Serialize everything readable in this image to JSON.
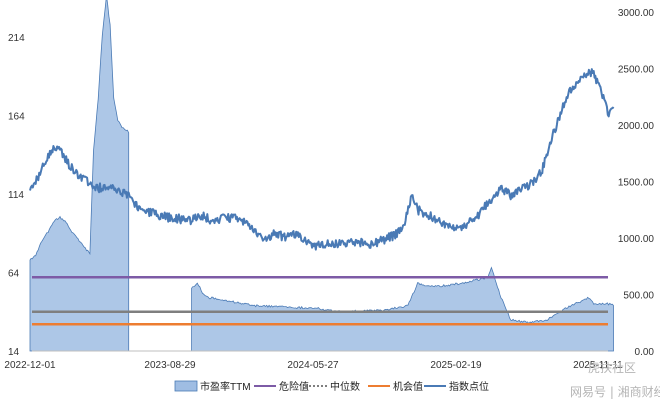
{
  "chart_data": {
    "type": "line",
    "title": "",
    "x_ticks": [
      "2022-12-01",
      "2023-08-29",
      "2024-05-27",
      "2025-02-19",
      "2025-11-11"
    ],
    "y_left": {
      "ticks": [
        "214",
        "164",
        "114",
        "64",
        "14"
      ],
      "range": [
        14,
        230
      ]
    },
    "y_right": {
      "ticks": [
        "3000.00",
        "2500.00",
        "2000.00",
        "1500.00",
        "1000.00",
        "500.00",
        "0.00"
      ],
      "range": [
        0,
        3000
      ]
    },
    "grid": false,
    "legend_position": "bottom",
    "series": [
      {
        "name": "市盈率TTM",
        "axis": "left",
        "style": "area",
        "color": "#9fbde3",
        "points": [
          [
            "2022-12-01",
            72
          ],
          [
            "2022-12-12",
            75
          ],
          [
            "2022-12-24",
            84
          ],
          [
            "2023-01-05",
            90
          ],
          [
            "2023-01-17",
            97
          ],
          [
            "2023-01-28",
            99
          ],
          [
            "2023-02-09",
            96
          ],
          [
            "2023-02-20",
            90
          ],
          [
            "2023-03-04",
            85
          ],
          [
            "2023-03-16",
            80
          ],
          [
            "2023-03-27",
            76
          ],
          [
            "2023-04-03",
            142
          ],
          [
            "2023-04-12",
            175
          ],
          [
            "2023-04-20",
            215
          ],
          [
            "2023-04-28",
            240
          ],
          [
            "2023-05-05",
            222
          ],
          [
            "2023-05-12",
            175
          ],
          [
            "2023-05-20",
            161
          ],
          [
            "2023-05-28",
            157
          ],
          [
            "2023-06-05",
            155
          ],
          [
            "2023-06-10",
            153
          ],
          [
            "2023-06-11",
            null
          ],
          [
            "2023-10-08",
            null
          ],
          [
            "2023-10-09",
            54
          ],
          [
            "2023-10-20",
            57
          ],
          [
            "2023-11-01",
            50
          ],
          [
            "2023-11-12",
            48
          ],
          [
            "2023-12-16",
            46
          ],
          [
            "2024-02-01",
            43
          ],
          [
            "2024-04-06",
            42
          ],
          [
            "2024-06-06",
            41
          ],
          [
            "2024-07-09",
            39
          ],
          [
            "2024-10-07",
            40
          ],
          [
            "2024-11-21",
            43
          ],
          [
            "2024-12-09",
            57
          ],
          [
            "2025-01-07",
            55
          ],
          [
            "2025-02-05",
            56
          ],
          [
            "2025-03-15",
            58
          ],
          [
            "2025-04-19",
            61
          ],
          [
            "2025-04-26",
            67
          ],
          [
            "2025-05-12",
            50
          ],
          [
            "2025-06-01",
            34
          ],
          [
            "2025-07-05",
            32
          ],
          [
            "2025-08-08",
            34
          ],
          [
            "2025-09-11",
            41
          ],
          [
            "2025-10-06",
            45
          ],
          [
            "2025-10-25",
            48
          ],
          [
            "2025-11-03",
            44
          ],
          [
            "2025-12-03",
            44
          ],
          [
            "2025-12-10",
            43
          ]
        ]
      },
      {
        "name": "危险值",
        "axis": "left",
        "style": "hline",
        "color": "#7d5ba6",
        "value": 61
      },
      {
        "name": "中位数",
        "axis": "left",
        "style": "hline",
        "color": "#7f7f7f",
        "value": 39
      },
      {
        "name": "机会值",
        "axis": "left",
        "style": "hline",
        "color": "#ed7d31",
        "value": 31
      },
      {
        "name": "指数点位",
        "axis": "right",
        "style": "line",
        "color": "#4a7ab5",
        "points": [
          [
            "2022-12-01",
            1420
          ],
          [
            "2022-12-12",
            1490
          ],
          [
            "2022-12-24",
            1610
          ],
          [
            "2023-01-05",
            1740
          ],
          [
            "2023-01-17",
            1780
          ],
          [
            "2023-01-28",
            1800
          ],
          [
            "2023-02-09",
            1690
          ],
          [
            "2023-02-20",
            1620
          ],
          [
            "2023-03-04",
            1560
          ],
          [
            "2023-03-16",
            1530
          ],
          [
            "2023-03-27",
            1475
          ],
          [
            "2023-04-12",
            1440
          ],
          [
            "2023-04-28",
            1460
          ],
          [
            "2023-05-20",
            1420
          ],
          [
            "2023-06-05",
            1400
          ],
          [
            "2023-06-20",
            1320
          ],
          [
            "2023-07-05",
            1250
          ],
          [
            "2023-07-20",
            1230
          ],
          [
            "2023-08-05",
            1200
          ],
          [
            "2023-08-29",
            1180
          ],
          [
            "2023-09-15",
            1170
          ],
          [
            "2023-10-09",
            1160
          ],
          [
            "2023-11-01",
            1190
          ],
          [
            "2023-11-20",
            1150
          ],
          [
            "2023-12-16",
            1180
          ],
          [
            "2024-01-10",
            1170
          ],
          [
            "2024-01-30",
            1090
          ],
          [
            "2024-02-20",
            990
          ],
          [
            "2024-03-15",
            1040
          ],
          [
            "2024-04-06",
            1000
          ],
          [
            "2024-04-25",
            1030
          ],
          [
            "2024-05-10",
            970
          ],
          [
            "2024-05-27",
            930
          ],
          [
            "2024-06-15",
            950
          ],
          [
            "2024-07-09",
            940
          ],
          [
            "2024-08-10",
            970
          ],
          [
            "2024-09-10",
            940
          ],
          [
            "2024-10-01",
            980
          ],
          [
            "2024-10-28",
            1020
          ],
          [
            "2024-11-15",
            1140
          ],
          [
            "2024-11-28",
            1380
          ],
          [
            "2024-12-09",
            1250
          ],
          [
            "2024-12-30",
            1200
          ],
          [
            "2025-01-15",
            1150
          ],
          [
            "2025-02-05",
            1110
          ],
          [
            "2025-02-19",
            1080
          ],
          [
            "2025-03-10",
            1120
          ],
          [
            "2025-03-30",
            1190
          ],
          [
            "2025-04-19",
            1300
          ],
          [
            "2025-04-26",
            1310
          ],
          [
            "2025-05-12",
            1450
          ],
          [
            "2025-06-01",
            1380
          ],
          [
            "2025-06-20",
            1420
          ],
          [
            "2025-07-10",
            1480
          ],
          [
            "2025-07-30",
            1600
          ],
          [
            "2025-08-15",
            1850
          ],
          [
            "2025-09-05",
            2150
          ],
          [
            "2025-09-25",
            2350
          ],
          [
            "2025-10-06",
            2380
          ],
          [
            "2025-10-25",
            2490
          ],
          [
            "2025-11-03",
            2440
          ],
          [
            "2025-11-14",
            2360
          ],
          [
            "2025-11-21",
            2250
          ],
          [
            "2025-12-01",
            2090
          ],
          [
            "2025-12-10",
            2160
          ]
        ]
      }
    ]
  },
  "watermarks": [
    "虎扶社区",
    "网易号 | 湘商财经"
  ]
}
